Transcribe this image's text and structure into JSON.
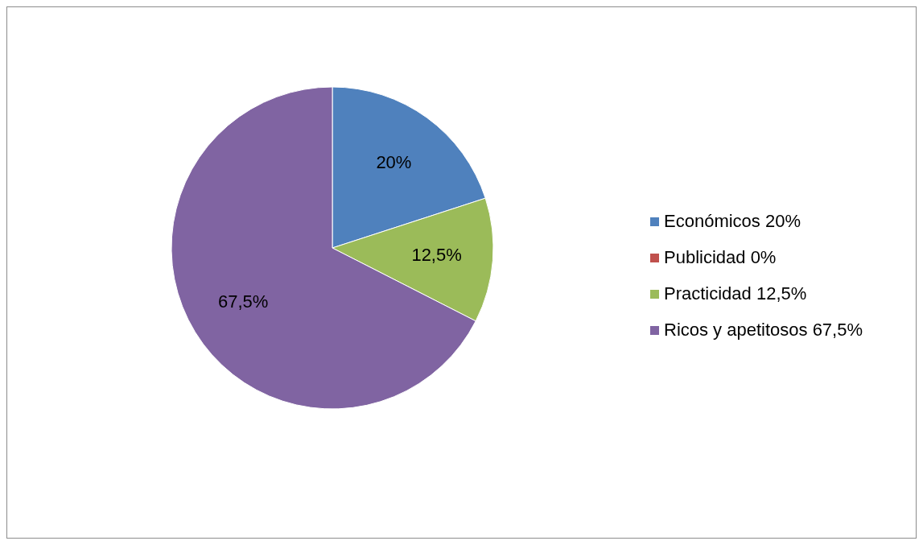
{
  "chart_data": {
    "type": "pie",
    "categories": [
      "Económicos 20%",
      "Publicidad 0%",
      "Practicidad 12,5%",
      "Ricos y apetitosos 67,5%"
    ],
    "values": [
      20,
      0,
      12.5,
      67.5
    ],
    "colors": [
      "#4f81bd",
      "#c0504d",
      "#9bbb59",
      "#8064a2"
    ],
    "value_labels": [
      "20%",
      null,
      "12,5%",
      "67,5%"
    ],
    "legend": "right"
  }
}
